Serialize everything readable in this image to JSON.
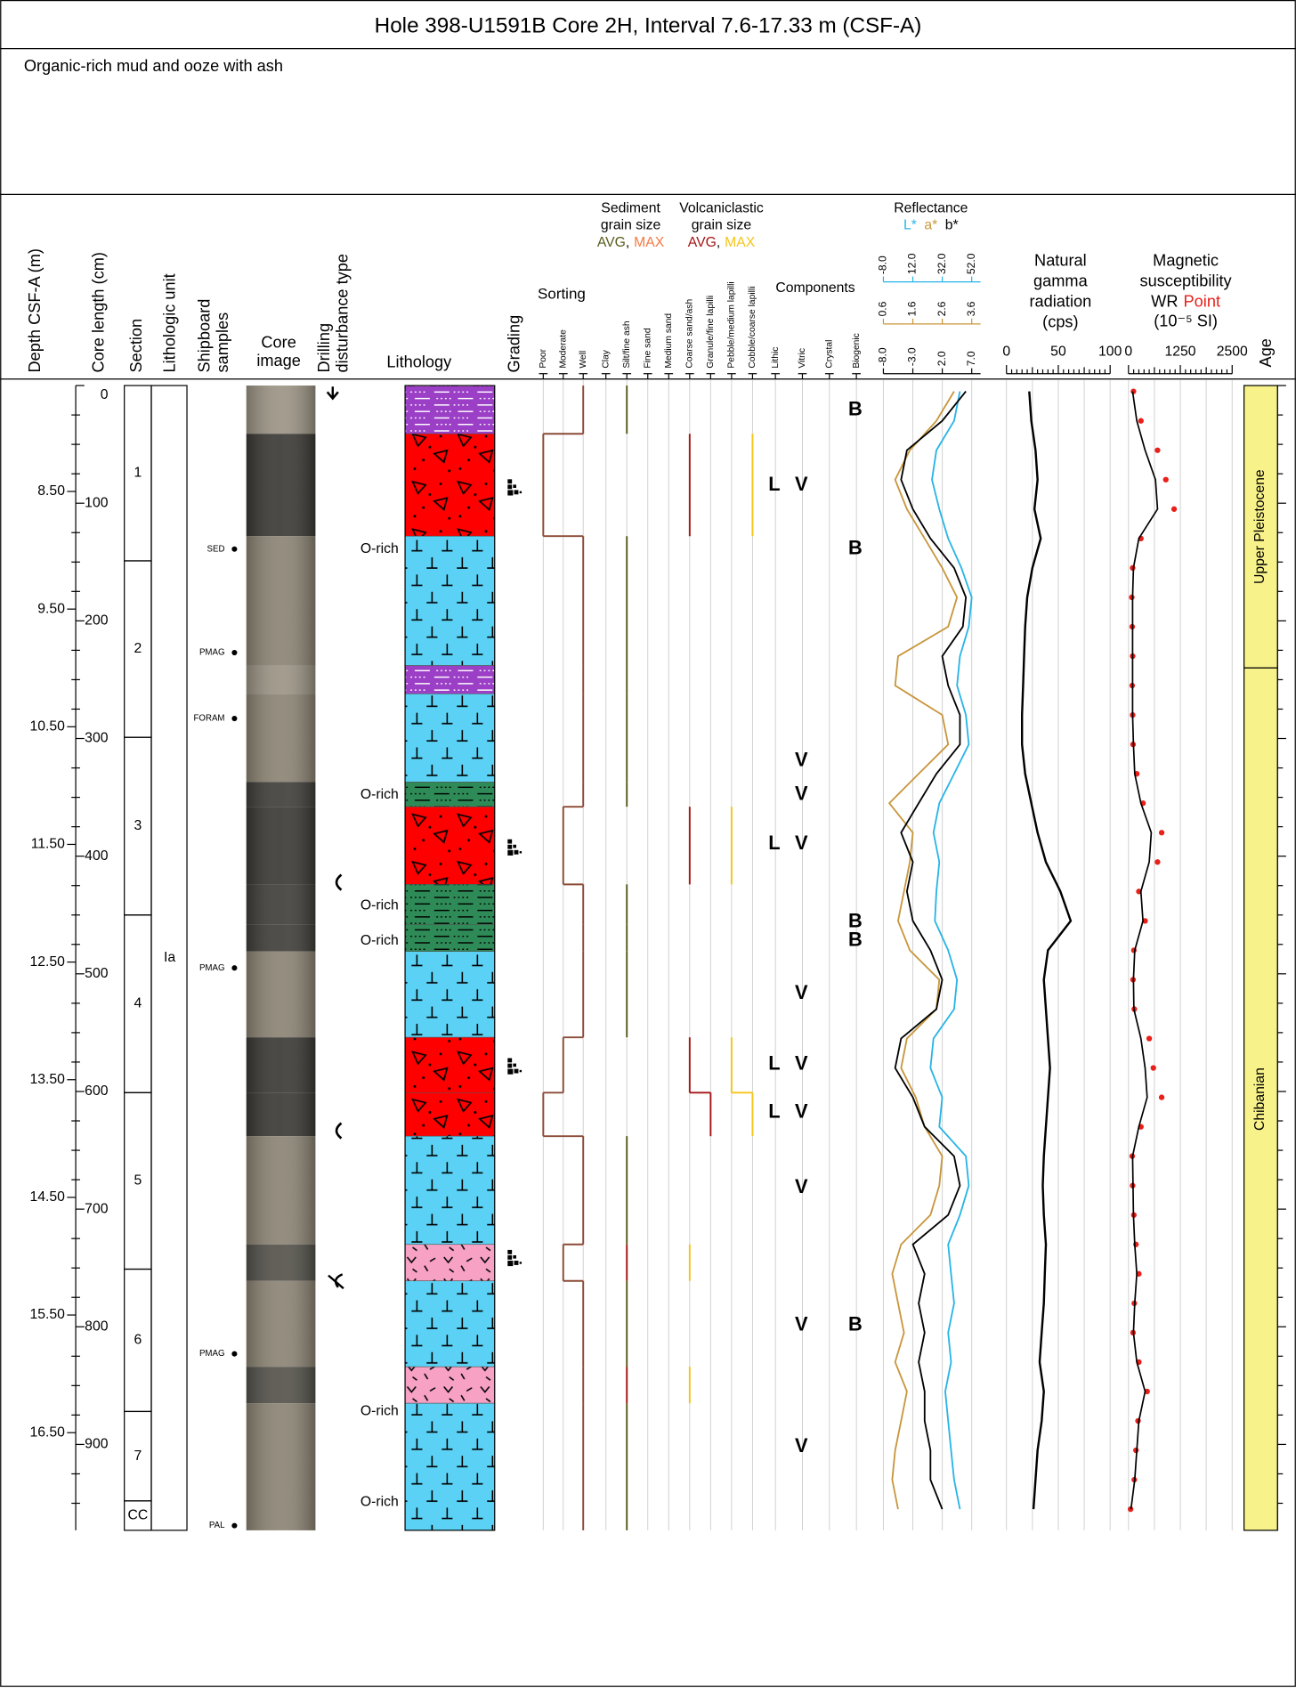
{
  "header": {
    "title": "Hole 398-U1591B Core 2H, Interval 7.6-17.33 m (CSF-A)",
    "summary": "Organic-rich mud and ooze with ash"
  },
  "columns": {
    "depth": "Depth CSF-A (m)",
    "core_length": "Core length (cm)",
    "section": "Section",
    "unit": "Lithologic unit",
    "samples": [
      "Shipboard",
      "samples"
    ],
    "image": [
      "Core",
      "image"
    ],
    "disturbance": [
      "Drilling",
      "disturbance type"
    ],
    "lithology": "Lithology",
    "grading": "Grading",
    "sorting": {
      "title": "Sorting",
      "classes": [
        "Poor",
        "Moderate",
        "Well"
      ],
      "color": "#8b4a36"
    },
    "sediment_grain": {
      "title": [
        "Sediment",
        "grain size"
      ],
      "avg": {
        "text": "AVG",
        "color": "#5b5b1f"
      },
      "separator": ",",
      "max": {
        "text": "MAX",
        "color": "#f47a45"
      }
    },
    "volcanic_grain": {
      "title": [
        "Volcaniclastic",
        "grain size"
      ],
      "avg": {
        "text": "AVG",
        "color": "#a51515"
      },
      "separator": ",",
      "max": {
        "text": "MAX",
        "color": "#f5c518"
      }
    },
    "grain_classes": [
      "Clay",
      "Silt/fine ash",
      "Fine sand",
      "Medium sand",
      "Coarse sand/ash",
      "Granule/fine lapilli",
      "Pebble/medium lapilli",
      "Cobble/coarse lapilli"
    ],
    "components": {
      "title": "Components",
      "classes": [
        "Lithic",
        "Vitric",
        "Crystal",
        "Biogenic"
      ]
    },
    "age": "Age"
  },
  "axes": {
    "depth_ticks": [
      {
        "value": 8.5,
        "label": "8.50"
      },
      {
        "value": 9.5,
        "label": "9.50"
      },
      {
        "value": 10.5,
        "label": "10.50"
      },
      {
        "value": 11.5,
        "label": "11.50"
      },
      {
        "value": 12.5,
        "label": "12.50"
      },
      {
        "value": 13.5,
        "label": "13.50"
      },
      {
        "value": 14.5,
        "label": "14.50"
      },
      {
        "value": 15.5,
        "label": "15.50"
      },
      {
        "value": 16.5,
        "label": "16.50"
      }
    ],
    "core_length_ticks": [
      0,
      100,
      200,
      300,
      400,
      500,
      600,
      700,
      800,
      900
    ]
  },
  "sections": [
    {
      "label": "1",
      "top": 7.6,
      "bottom": 9.09
    },
    {
      "label": "2",
      "top": 9.09,
      "bottom": 10.59
    },
    {
      "label": "3",
      "top": 10.59,
      "bottom": 12.1
    },
    {
      "label": "4",
      "top": 12.1,
      "bottom": 13.61
    },
    {
      "label": "5",
      "top": 13.61,
      "bottom": 15.11
    },
    {
      "label": "6",
      "top": 15.11,
      "bottom": 16.32
    },
    {
      "label": "7",
      "top": 16.32,
      "bottom": 17.08
    },
    {
      "label": "CC",
      "top": 17.08,
      "bottom": 17.33
    }
  ],
  "unit": {
    "label": "Ia",
    "top": 7.6,
    "bottom": 17.33
  },
  "samples": [
    {
      "label": "SED",
      "depth": 8.99
    },
    {
      "label": "PMAG",
      "depth": 9.87
    },
    {
      "label": "FORAM",
      "depth": 10.43
    },
    {
      "label": "PMAG",
      "depth": 12.55
    },
    {
      "label": "PMAG",
      "depth": 15.83
    },
    {
      "label": "PAL",
      "depth": 17.29
    }
  ],
  "annotations": [
    {
      "label": "O-rich",
      "depth": 8.99
    },
    {
      "label": "O-rich",
      "depth": 11.08
    },
    {
      "label": "O-rich",
      "depth": 12.02
    },
    {
      "label": "O-rich",
      "depth": 12.32
    },
    {
      "label": "O-rich",
      "depth": 16.32
    },
    {
      "label": "O-rich",
      "depth": 17.09
    }
  ],
  "lithology": {
    "intervals": [
      {
        "top": 7.6,
        "bottom": 8.01,
        "color": "#9b3fc6",
        "sorting": "Well",
        "sediment_avg": "Silt/fine ash"
      },
      {
        "top": 8.01,
        "bottom": 8.88,
        "color": "#ff0000",
        "sorting": "Poor",
        "volcanic_avg": "Coarse sand/ash",
        "volcanic_max": "Cobble/coarse lapilli"
      },
      {
        "top": 8.88,
        "bottom": 9.98,
        "color": "#5bd2f5",
        "sorting": "Well",
        "sediment_avg": "Silt/fine ash"
      },
      {
        "top": 9.98,
        "bottom": 10.22,
        "color": "#9b3fc6",
        "sorting": "Well",
        "sediment_avg": "Silt/fine ash"
      },
      {
        "top": 10.22,
        "bottom": 10.97,
        "color": "#5bd2f5",
        "sorting": "Well",
        "sediment_avg": "Silt/fine ash"
      },
      {
        "top": 10.97,
        "bottom": 11.18,
        "color": "#2e8b57",
        "sorting": "Well",
        "sediment_avg": "Silt/fine ash"
      },
      {
        "top": 11.18,
        "bottom": 11.84,
        "color": "#ff0000",
        "sorting": "Moderate",
        "volcanic_avg": "Coarse sand/ash",
        "volcanic_max": "Pebble/medium lapilli"
      },
      {
        "top": 11.84,
        "bottom": 12.18,
        "color": "#2e8b57",
        "sorting": "Well",
        "sediment_avg": "Silt/fine ash"
      },
      {
        "top": 12.18,
        "bottom": 12.41,
        "color": "#2e8b57",
        "sorting": "Well",
        "sediment_avg": "Silt/fine ash"
      },
      {
        "top": 12.41,
        "bottom": 13.14,
        "color": "#5bd2f5",
        "sorting": "Well",
        "sediment_avg": "Silt/fine ash"
      },
      {
        "top": 13.14,
        "bottom": 13.61,
        "color": "#ff0000",
        "sorting": "Moderate",
        "volcanic_avg": "Coarse sand/ash",
        "volcanic_max": "Pebble/medium lapilli"
      },
      {
        "top": 13.61,
        "bottom": 13.98,
        "color": "#ff0000",
        "sorting": "Poor",
        "volcanic_avg": "Granule/fine lapilli",
        "volcanic_max": "Cobble/coarse lapilli"
      },
      {
        "top": 13.98,
        "bottom": 14.9,
        "color": "#5bd2f5",
        "sorting": "Well",
        "sediment_avg": "Silt/fine ash"
      },
      {
        "top": 14.9,
        "bottom": 15.21,
        "color": "#f7a1c4",
        "sorting": "Moderate",
        "volcanic_avg": "Silt/fine ash",
        "volcanic_max": "Coarse sand/ash"
      },
      {
        "top": 15.21,
        "bottom": 15.94,
        "color": "#5bd2f5",
        "sorting": "Well",
        "sediment_avg": "Silt/fine ash"
      },
      {
        "top": 15.94,
        "bottom": 16.25,
        "color": "#f7a1c4",
        "sorting": "Well",
        "volcanic_avg": "Silt/fine ash",
        "volcanic_max": "Coarse sand/ash"
      },
      {
        "top": 16.25,
        "bottom": 17.33,
        "color": "#5bd2f5",
        "sorting": "Well",
        "sediment_avg": "Silt/fine ash"
      }
    ]
  },
  "grading": [
    8.47,
    11.53,
    13.39,
    15.02
  ],
  "components": [
    {
      "depth": 7.81,
      "component": "Biogenic",
      "label": "B"
    },
    {
      "depth": 8.45,
      "component": "Lithic",
      "label": "L"
    },
    {
      "depth": 8.45,
      "component": "Vitric",
      "label": "V"
    },
    {
      "depth": 8.99,
      "component": "Biogenic",
      "label": "B"
    },
    {
      "depth": 10.79,
      "component": "Vitric",
      "label": "V"
    },
    {
      "depth": 11.08,
      "component": "Vitric",
      "label": "V"
    },
    {
      "depth": 11.5,
      "component": "Lithic",
      "label": "L"
    },
    {
      "depth": 11.5,
      "component": "Vitric",
      "label": "V"
    },
    {
      "depth": 12.16,
      "component": "Biogenic",
      "label": "B"
    },
    {
      "depth": 12.32,
      "component": "Biogenic",
      "label": "B"
    },
    {
      "depth": 12.77,
      "component": "Vitric",
      "label": "V"
    },
    {
      "depth": 13.37,
      "component": "Lithic",
      "label": "L"
    },
    {
      "depth": 13.37,
      "component": "Vitric",
      "label": "V"
    },
    {
      "depth": 13.78,
      "component": "Lithic",
      "label": "L"
    },
    {
      "depth": 13.78,
      "component": "Vitric",
      "label": "V"
    },
    {
      "depth": 14.42,
      "component": "Vitric",
      "label": "V"
    },
    {
      "depth": 15.59,
      "component": "Vitric",
      "label": "V"
    },
    {
      "depth": 15.59,
      "component": "Biogenic",
      "label": "B"
    },
    {
      "depth": 16.62,
      "component": "Vitric",
      "label": "V"
    }
  ],
  "age": [
    {
      "label": "Upper Pleistocene",
      "top": 7.6,
      "bottom": 10.0
    },
    {
      "label": "Chibanian",
      "top": 10.0,
      "bottom": 17.33
    }
  ],
  "logs": {
    "depth_lim": [
      7.6,
      17.33
    ],
    "depths": [
      7.65,
      7.9,
      8.15,
      8.4,
      8.65,
      8.9,
      9.15,
      9.4,
      9.65,
      9.9,
      10.15,
      10.4,
      10.65,
      10.9,
      11.15,
      11.4,
      11.65,
      11.9,
      12.15,
      12.4,
      12.65,
      12.9,
      13.15,
      13.4,
      13.65,
      13.9,
      14.15,
      14.4,
      14.65,
      14.9,
      15.15,
      15.4,
      15.65,
      15.9,
      16.15,
      16.4,
      16.65,
      16.9,
      17.15
    ],
    "reflectance": {
      "title": "Reflectance",
      "series": [
        {
          "name": "L*",
          "color": "#27b4e6",
          "lim": [
            -8,
            58
          ],
          "ticks": [
            {
              "value": -8,
              "label": "-8.0"
            },
            {
              "value": 12,
              "label": "12.0"
            },
            {
              "value": 32,
              "label": "32.0"
            },
            {
              "value": 52,
              "label": "52.0"
            }
          ],
          "values": [
            44,
            40,
            28,
            25,
            30,
            36,
            45,
            52,
            50,
            44,
            42,
            48,
            50,
            40,
            30,
            26,
            30,
            28,
            27,
            36,
            42,
            40,
            26,
            24,
            32,
            30,
            48,
            50,
            44,
            36,
            38,
            40,
            36,
            38,
            34,
            36,
            38,
            40,
            44
          ]
        },
        {
          "name": "a*",
          "color": "#c8963c",
          "lim": [
            0.6,
            3.9
          ],
          "ticks": [
            0.6,
            1.6,
            2.6,
            3.6
          ],
          "values": [
            3.0,
            2.4,
            1.5,
            1.0,
            1.4,
            2.0,
            2.6,
            3.1,
            2.8,
            1.1,
            1.0,
            2.6,
            2.8,
            1.8,
            0.8,
            1.6,
            1.5,
            1.3,
            1.1,
            1.5,
            2.5,
            2.4,
            1.4,
            1.2,
            1.7,
            2.0,
            2.6,
            2.5,
            2.2,
            1.2,
            0.9,
            1.1,
            1.3,
            1.0,
            1.4,
            1.2,
            1.0,
            0.9,
            1.1
          ]
        },
        {
          "name": "b*",
          "color": "#000000",
          "lim": [
            -8,
            8.5
          ],
          "ticks": [
            {
              "value": -8,
              "label": "-8.0"
            },
            {
              "value": -3,
              "label": "-3.0"
            },
            {
              "value": 2,
              "label": "2.0"
            },
            {
              "value": 7,
              "label": "7.0"
            }
          ],
          "values": [
            6,
            2,
            -4,
            -5,
            -3,
            0,
            4,
            6,
            5.5,
            2,
            3,
            5,
            5,
            1,
            -2,
            -5,
            -3,
            -4,
            -3,
            0,
            2,
            1,
            -5,
            -6,
            -3,
            -1,
            4,
            5,
            3,
            -3,
            -1,
            -2,
            -1,
            -2,
            -1,
            -1,
            0,
            0,
            2
          ]
        }
      ]
    },
    "ngr": {
      "lines": [
        "Natural",
        "gamma",
        "radiation",
        "(cps)"
      ],
      "lim": [
        0,
        100
      ],
      "ticks": [
        0,
        50,
        100
      ],
      "color": "#000000",
      "values": [
        22,
        24,
        28,
        30,
        27,
        33,
        25,
        20,
        18,
        17,
        16,
        15,
        15,
        18,
        24,
        30,
        38,
        52,
        62,
        40,
        36,
        38,
        40,
        42,
        40,
        38,
        36,
        35,
        36,
        38,
        37,
        36,
        34,
        32,
        36,
        34,
        30,
        28,
        26
      ]
    },
    "ms": {
      "lines": [
        "Magnetic",
        "susceptibility"
      ],
      "unit": "(10⁻⁵ SI)",
      "lim": [
        0,
        2500
      ],
      "ticks": [
        0,
        1250,
        2500
      ],
      "wr": {
        "name": "WR",
        "color": "#000000",
        "values": [
          100,
          200,
          400,
          650,
          700,
          250,
          120,
          100,
          100,
          100,
          100,
          100,
          120,
          150,
          300,
          550,
          500,
          300,
          350,
          150,
          120,
          130,
          300,
          400,
          450,
          250,
          100,
          110,
          120,
          150,
          200,
          150,
          120,
          200,
          400,
          250,
          200,
          150,
          60
        ]
      },
      "point": {
        "name": "Point",
        "color": "#e8201a",
        "values": [
          120,
          300,
          700,
          900,
          1100,
          300,
          100,
          80,
          90,
          100,
          90,
          100,
          110,
          200,
          350,
          800,
          700,
          250,
          400,
          130,
          110,
          140,
          500,
          600,
          800,
          300,
          90,
          100,
          130,
          180,
          250,
          140,
          110,
          250,
          450,
          230,
          180,
          140,
          50
        ]
      }
    }
  }
}
